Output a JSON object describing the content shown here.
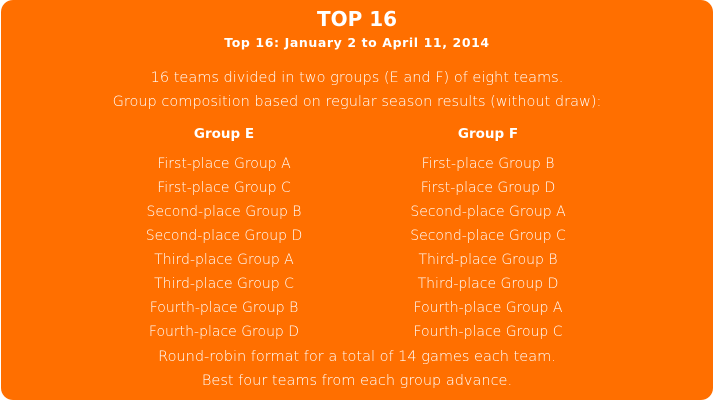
{
  "title": "TOP 16",
  "subtitle": "Top 16: January 2 to April 11, 2014",
  "description": [
    "16 teams divided in two groups (E and F) of eight teams.",
    "Group composition based on regular season results (without draw):"
  ],
  "groups": [
    {
      "name": "Group E",
      "items": [
        "First-place Group A",
        "First-place Group C",
        "Second-place Group B",
        "Second-place Group D",
        "Third-place Group A",
        "Third-place Group C",
        "Fourth-place Group B",
        "Fourth-place Group D"
      ]
    },
    {
      "name": "Group F",
      "items": [
        "First-place Group B",
        "First-place Group D",
        "Second-place Group A",
        "Second-place Group C",
        "Third-place Group B",
        "Third-place Group D",
        "Fourth-place Group A",
        "Fourth-place Group C"
      ]
    }
  ],
  "footer": [
    "Round-robin format for a total of 14 games each team.",
    "Best four teams from each group advance."
  ],
  "colors": {
    "background": "#FF6F00",
    "text": "#FFFFFF"
  }
}
